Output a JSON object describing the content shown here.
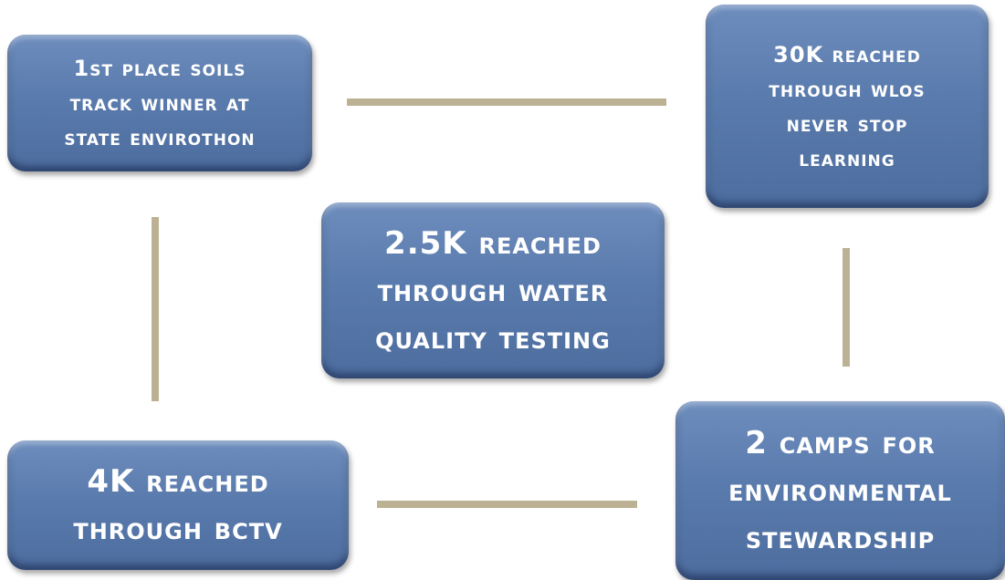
{
  "nodes": [
    {
      "lines": [
        "1st place soils",
        "track winner at",
        "state envirothon"
      ]
    },
    {
      "lines": [
        "30K reached",
        "through wlos",
        "never stop",
        "learning"
      ]
    },
    {
      "lines": [
        "2.5K reached",
        "through water",
        "quality testing"
      ]
    },
    {
      "lines": [
        "4K reached",
        "through bctv"
      ]
    },
    {
      "lines": [
        "2 camps for",
        "environmental",
        "stewardship"
      ]
    }
  ]
}
